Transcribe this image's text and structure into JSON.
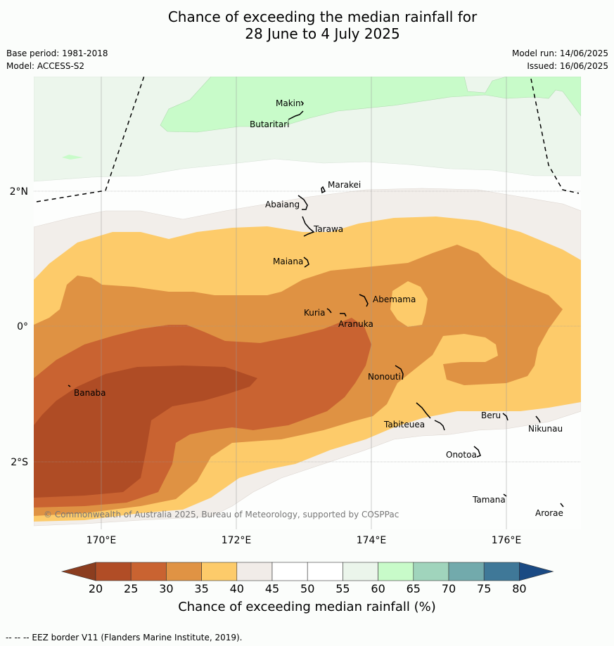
{
  "title_line1": "Chance of exceeding the median rainfall for",
  "title_line2": "28 June to 4 July 2025",
  "base_period": "Base period: 1981-2018",
  "model": "Model: ACCESS-S2",
  "model_run": "Model run: 14/06/2025",
  "issued": "Issued: 16/06/2025",
  "copyright": "© Commonwealth of Australia 2025, Bureau of Meteorology, supported by COSPPac",
  "lat_labels": [
    "2°N",
    "0°",
    "2°S"
  ],
  "lon_labels": [
    "170°E",
    "172°E",
    "174°E",
    "176°E"
  ],
  "places": [
    "Makin",
    "Butaritari",
    "Marakei",
    "Abaiang",
    "Tarawa",
    "Maiana",
    "Abemama",
    "Kuria",
    "Aranuka",
    "Nonouti",
    "Banaba",
    "Beru",
    "Nikunau",
    "Tabiteuea",
    "Onotoa",
    "Tamana",
    "Arorae"
  ],
  "colorbar": {
    "title": "Chance of exceeding median rainfall (%)",
    "ticks": [
      "20",
      "25",
      "30",
      "35",
      "40",
      "45",
      "50",
      "55",
      "60",
      "65",
      "70",
      "75",
      "80"
    ],
    "colors": [
      "#8b3d1f",
      "#b14d26",
      "#c96331",
      "#e09344",
      "#fdcb6a",
      "#f1ece8",
      "#ffffff",
      "#ffffff",
      "#ebf5eb",
      "#c8fbc9",
      "#a0d4bc",
      "#72aaac",
      "#3f7898",
      "#1a4a83"
    ]
  },
  "footer": "--  --  -- EEZ border V11 (Flanders Marine Institute, 2019)."
}
